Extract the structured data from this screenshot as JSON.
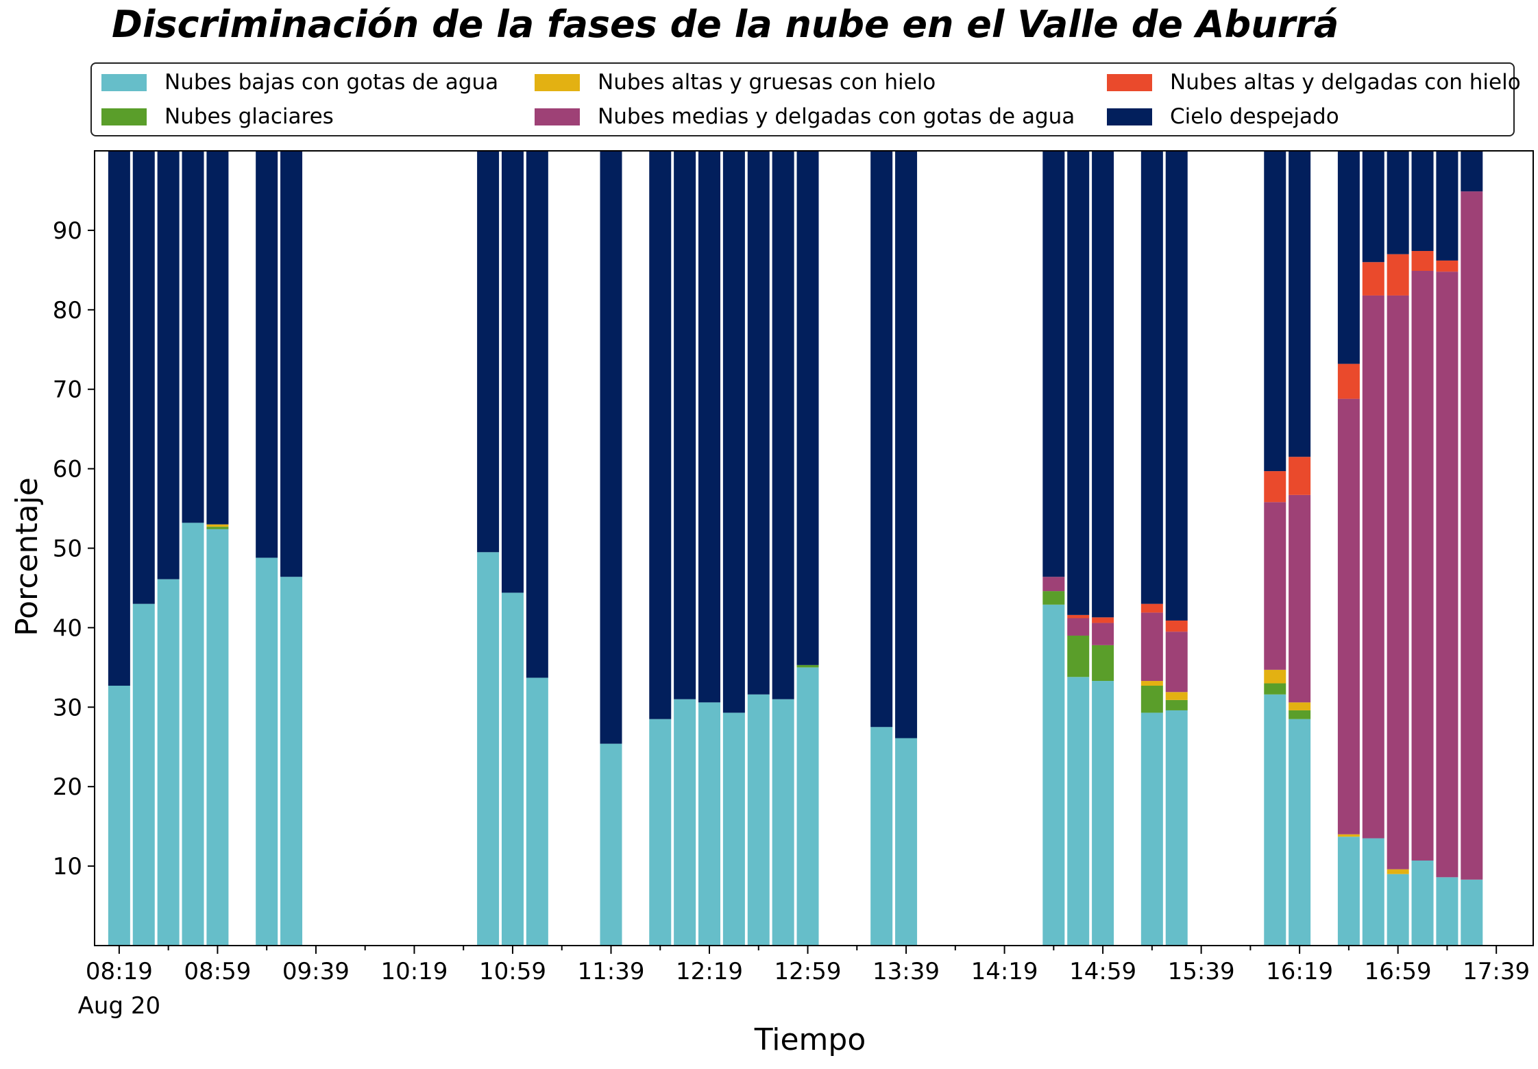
{
  "chart_data": {
    "type": "bar",
    "stacked": true,
    "title": "Discriminación de la fases de la nube en el Valle de Aburrá",
    "xlabel": "Tiempo",
    "ylabel": "Porcentaje",
    "ylim": [
      0,
      100
    ],
    "xlim_minutes": [
      -10,
      575
    ],
    "yticks": [
      10,
      20,
      30,
      40,
      50,
      60,
      70,
      80,
      90
    ],
    "xticks": [
      {
        "label": "08:19",
        "sub": "Aug 20"
      },
      {
        "label": "08:59",
        "sub": ""
      },
      {
        "label": "09:39",
        "sub": ""
      },
      {
        "label": "10:19",
        "sub": ""
      },
      {
        "label": "10:59",
        "sub": ""
      },
      {
        "label": "11:39",
        "sub": ""
      },
      {
        "label": "12:19",
        "sub": ""
      },
      {
        "label": "12:59",
        "sub": ""
      },
      {
        "label": "13:39",
        "sub": ""
      },
      {
        "label": "14:19",
        "sub": ""
      },
      {
        "label": "14:59",
        "sub": ""
      },
      {
        "label": "15:39",
        "sub": ""
      },
      {
        "label": "16:19",
        "sub": ""
      },
      {
        "label": "16:59",
        "sub": ""
      },
      {
        "label": "17:39",
        "sub": ""
      }
    ],
    "grid": false,
    "legend_position": "top",
    "categories": [
      "08:19",
      "08:29",
      "08:39",
      "08:49",
      "08:59",
      "09:19",
      "09:29",
      "10:49",
      "10:59",
      "11:09",
      "11:39",
      "11:59",
      "12:09",
      "12:19",
      "12:29",
      "12:39",
      "12:49",
      "12:59",
      "13:29",
      "13:39",
      "14:39",
      "14:49",
      "14:59",
      "15:19",
      "15:29",
      "16:09",
      "16:19",
      "16:39",
      "16:49",
      "16:59",
      "17:09",
      "17:19",
      "17:29"
    ],
    "x_minutes": [
      0,
      10,
      20,
      30,
      40,
      60,
      70,
      150,
      160,
      170,
      200,
      220,
      230,
      240,
      250,
      260,
      270,
      280,
      310,
      320,
      380,
      390,
      400,
      420,
      430,
      470,
      480,
      500,
      510,
      520,
      530,
      540,
      550
    ],
    "series": [
      {
        "name": "Nubes bajas con gotas de agua",
        "color": "#66bec9",
        "values": [
          32.7,
          43.0,
          46.1,
          53.2,
          52.4,
          48.8,
          46.4,
          49.5,
          44.4,
          33.7,
          25.4,
          28.5,
          31.0,
          30.6,
          29.3,
          31.6,
          31.0,
          35.0,
          27.5,
          26.1,
          42.9,
          33.8,
          33.3,
          29.3,
          29.6,
          31.6,
          28.5,
          13.7,
          13.5,
          9.0,
          10.7,
          8.6,
          8.3
        ]
      },
      {
        "name": "Nubes glaciares",
        "color": "#5a9e2a",
        "values": [
          0,
          0,
          0,
          0,
          0.3,
          0,
          0,
          0,
          0,
          0,
          0,
          0,
          0,
          0,
          0,
          0,
          0,
          0.3,
          0,
          0,
          1.7,
          5.2,
          4.5,
          3.4,
          1.3,
          1.4,
          1.1,
          0,
          0,
          0,
          0,
          0,
          0
        ]
      },
      {
        "name": "Nubes altas y gruesas con hielo",
        "color": "#e3b112",
        "values": [
          0,
          0,
          0,
          0,
          0.3,
          0,
          0,
          0,
          0,
          0,
          0,
          0,
          0,
          0,
          0,
          0,
          0,
          0,
          0,
          0,
          0,
          0,
          0,
          0.6,
          1.0,
          1.7,
          1.0,
          0.3,
          0,
          0.6,
          0,
          0,
          0
        ]
      },
      {
        "name": "Nubes medias y delgadas con gotas de agua",
        "color": "#9e4176",
        "values": [
          0,
          0,
          0,
          0,
          0,
          0,
          0,
          0,
          0,
          0,
          0,
          0,
          0,
          0,
          0,
          0,
          0,
          0,
          0,
          0,
          1.8,
          2.2,
          2.8,
          8.6,
          7.6,
          21.1,
          26.1,
          54.8,
          68.3,
          72.2,
          74.2,
          76.2,
          86.6
        ]
      },
      {
        "name": "Nubes altas y delgadas con hielo",
        "color": "#ea4a2c",
        "values": [
          0,
          0,
          0,
          0,
          0,
          0,
          0,
          0,
          0,
          0,
          0,
          0,
          0,
          0,
          0,
          0,
          0,
          0,
          0,
          0,
          0,
          0.4,
          0.7,
          1.1,
          1.4,
          3.9,
          4.8,
          4.4,
          4.2,
          5.2,
          2.5,
          1.4,
          0
        ]
      },
      {
        "name": "Cielo despejado",
        "color": "#021f5c",
        "values": [
          67.3,
          57.0,
          53.9,
          46.8,
          47.0,
          51.2,
          53.6,
          50.5,
          55.6,
          66.3,
          74.6,
          71.5,
          69.0,
          69.4,
          70.7,
          68.4,
          69.0,
          64.7,
          72.5,
          73.9,
          53.6,
          58.4,
          58.7,
          57.0,
          59.1,
          40.3,
          38.5,
          26.8,
          14.0,
          13.0,
          12.6,
          13.8,
          5.1
        ]
      }
    ]
  }
}
